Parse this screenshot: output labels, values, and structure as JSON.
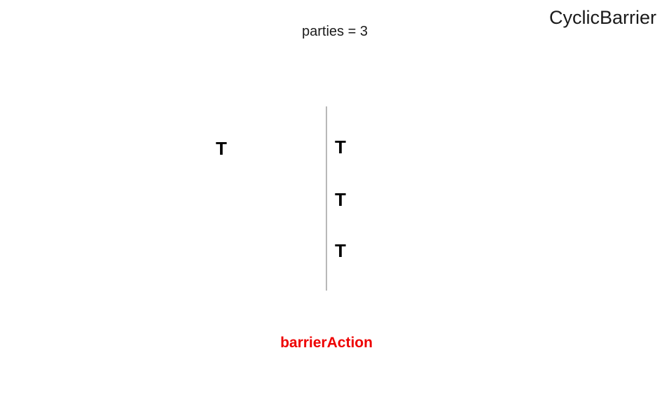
{
  "title": "CyclicBarrier",
  "parties_label": "parties = 3",
  "threads": {
    "waiting": [
      "T"
    ],
    "at_barrier": [
      "T",
      "T",
      "T"
    ]
  },
  "barrier_action_label": "barrierAction",
  "colors": {
    "barrier_action": "#ee0000",
    "barrier_line": "#b8b8b8",
    "text": "#000000"
  }
}
